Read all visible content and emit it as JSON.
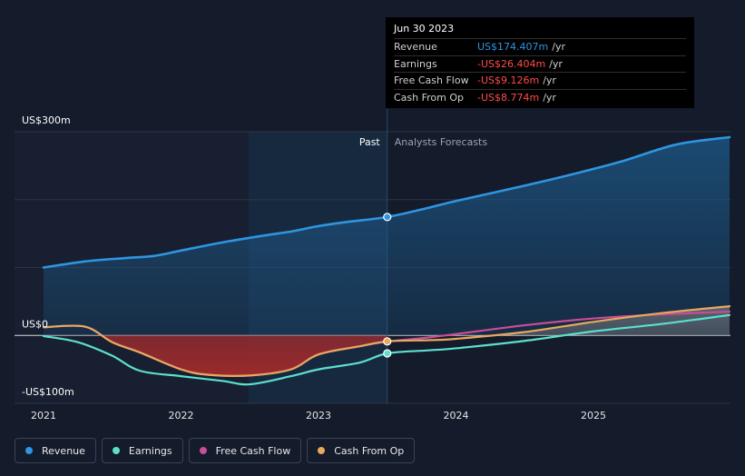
{
  "chart_data": {
    "type": "line",
    "title": "",
    "xlabel": "",
    "ylabel": "",
    "x_ticks": [
      "2021",
      "2022",
      "2023",
      "2024",
      "2025"
    ],
    "y_ticks": [
      {
        "value": 300,
        "label": "US$300m"
      },
      {
        "value": 0,
        "label": "US$0"
      },
      {
        "value": -100,
        "label": "-US$100m"
      }
    ],
    "xlim": [
      2020.81,
      2025.99
    ],
    "ylim": [
      -100,
      300
    ],
    "grid": true,
    "sections": {
      "past": "Past",
      "forecast": "Analysts Forecasts",
      "divider_x": 2023.5
    },
    "series": [
      {
        "name": "Revenue",
        "color": "#2f95e0",
        "x": [
          2021.0,
          2021.3,
          2021.6,
          2021.8,
          2022.0,
          2022.3,
          2022.6,
          2022.8,
          2023.0,
          2023.2,
          2023.5,
          2023.8,
          2024.0,
          2024.4,
          2024.8,
          2025.2,
          2025.6,
          2025.99
        ],
        "y": [
          100,
          109,
          114,
          117,
          125,
          137,
          147,
          153,
          161,
          167,
          174.4,
          188,
          198,
          216,
          235,
          256,
          281,
          292
        ]
      },
      {
        "name": "Earnings",
        "color": "#5ce0cc",
        "x": [
          2021.0,
          2021.25,
          2021.5,
          2021.7,
          2022.0,
          2022.3,
          2022.5,
          2022.8,
          2023.0,
          2023.3,
          2023.5,
          2023.8,
          2024.0,
          2024.5,
          2025.0,
          2025.5,
          2025.99
        ],
        "y": [
          -1,
          -10,
          -30,
          -52,
          -60,
          -67,
          -72,
          -60,
          -50,
          -40,
          -26.4,
          -22,
          -19,
          -8,
          6,
          17,
          30
        ]
      },
      {
        "name": "Free Cash Flow",
        "color": "#c84e96",
        "x": [
          2021.0,
          2021.3,
          2021.5,
          2021.7,
          2022.0,
          2022.2,
          2022.5,
          2022.8,
          2023.0,
          2023.3,
          2023.5,
          2023.8,
          2024.0,
          2024.5,
          2025.0,
          2025.5,
          2025.99
        ],
        "y": [
          12,
          13,
          -10,
          -25,
          -50,
          -58,
          -59,
          -50,
          -28,
          -16,
          -9.1,
          -3,
          2,
          15,
          25,
          31,
          35
        ]
      },
      {
        "name": "Cash From Op",
        "color": "#e8a85e",
        "x": [
          2021.0,
          2021.3,
          2021.5,
          2021.7,
          2022.0,
          2022.2,
          2022.5,
          2022.8,
          2023.0,
          2023.3,
          2023.5,
          2023.8,
          2024.0,
          2024.5,
          2025.0,
          2025.5,
          2025.99
        ],
        "y": [
          12,
          13,
          -10,
          -25,
          -50,
          -58,
          -59,
          -50,
          -28,
          -16,
          -8.8,
          -7,
          -5,
          5,
          20,
          33,
          43
        ]
      }
    ],
    "highlight": {
      "x": 2023.5,
      "series": [
        "Revenue",
        "Earnings",
        "Cash From Op"
      ]
    }
  },
  "tooltip": {
    "date": "Jun 30 2023",
    "rows": [
      {
        "label": "Revenue",
        "value": "US$174.407m",
        "unit": "/yr",
        "color": "#2f95e0"
      },
      {
        "label": "Earnings",
        "value": "-US$26.404m",
        "unit": "/yr",
        "color": "#ff4b4b"
      },
      {
        "label": "Free Cash Flow",
        "value": "-US$9.126m",
        "unit": "/yr",
        "color": "#ff4b4b"
      },
      {
        "label": "Cash From Op",
        "value": "-US$8.774m",
        "unit": "/yr",
        "color": "#ff4b4b"
      }
    ]
  },
  "legend": [
    {
      "label": "Revenue",
      "color": "#2f95e0"
    },
    {
      "label": "Earnings",
      "color": "#5ce0cc"
    },
    {
      "label": "Free Cash Flow",
      "color": "#c84e96"
    },
    {
      "label": "Cash From Op",
      "color": "#e8a85e"
    }
  ]
}
